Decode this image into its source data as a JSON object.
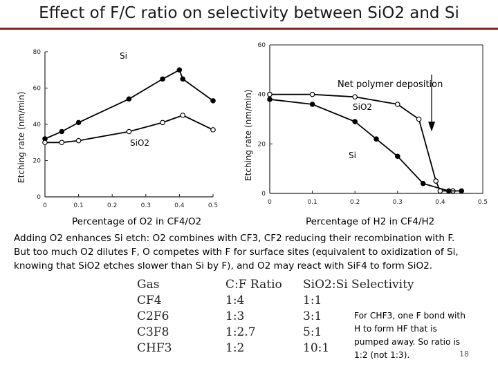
{
  "slide": {
    "title": "Effect of F/C ratio on selectivity between SiO2 and Si",
    "page_number": "18"
  },
  "left_chart": {
    "ylabel": "Etching rate (nm/min)",
    "series_label_si": "Si",
    "series_label_sio2": "SiO2",
    "xcaption": "Percentage of O2 in CF4/O2"
  },
  "right_chart": {
    "ylabel": "Etching rate (nm/min)",
    "annotation": "Net polymer deposition",
    "series_label_sio2": "SiO2",
    "series_label_si": "Si",
    "xcaption": "Percentage of H2 in CF4/H2"
  },
  "chart_data": [
    {
      "type": "line",
      "title": "",
      "xlabel": "Percentage of O2 in CF4/O2",
      "ylabel": "Etching rate (nm/min)",
      "xlim": [
        0,
        0.5
      ],
      "ylim": [
        0,
        80
      ],
      "x_ticks": [
        "0",
        "0.1",
        "0.2",
        "0.3",
        "0.4",
        "0.5"
      ],
      "y_ticks": [
        "0",
        "20",
        "40",
        "60",
        "80"
      ],
      "series": [
        {
          "name": "Si",
          "marker": "filled",
          "x": [
            0,
            0.05,
            0.1,
            0.25,
            0.35,
            0.4,
            0.41,
            0.5
          ],
          "y": [
            32,
            36,
            41,
            54,
            65,
            70,
            65,
            53
          ]
        },
        {
          "name": "SiO2",
          "marker": "open",
          "x": [
            0,
            0.05,
            0.1,
            0.25,
            0.35,
            0.41,
            0.5
          ],
          "y": [
            30,
            30,
            31,
            36,
            41,
            45,
            37
          ]
        }
      ]
    },
    {
      "type": "line",
      "title": "",
      "xlabel": "Percentage of H2 in CF4/H2",
      "ylabel": "Etching rate (nm/min)",
      "xlim": [
        0,
        0.5
      ],
      "ylim": [
        0,
        60
      ],
      "x_ticks": [
        "0",
        "0.1",
        "0.2",
        "0.3",
        "0.4",
        "0.5"
      ],
      "y_ticks": [
        "0",
        "20",
        "40",
        "60"
      ],
      "series": [
        {
          "name": "SiO2",
          "marker": "open",
          "x": [
            0,
            0.1,
            0.2,
            0.3,
            0.35,
            0.39,
            0.4,
            0.43
          ],
          "y": [
            40,
            40,
            39,
            36,
            30,
            5,
            1,
            1
          ]
        },
        {
          "name": "Si",
          "marker": "filled",
          "x": [
            0,
            0.1,
            0.2,
            0.25,
            0.3,
            0.36,
            0.42,
            0.45
          ],
          "y": [
            38,
            36,
            29,
            22,
            15,
            4,
            1,
            1
          ]
        }
      ]
    }
  ],
  "paragraph": {
    "line1": "Adding O2 enhances Si etch: O2 combines with CF3, CF2 reducing their recombination with F.",
    "line2": "But too much O2 dilutes F, O competes with F for surface sites (equivalent to oxidization of Si,",
    "line3": "knowing that SiO2 etches slower than Si by F), and O2 may react with SiF4 to form SiO2."
  },
  "table": {
    "headers": [
      "Gas",
      "C:F Ratio",
      "SiO2:Si Selectivity"
    ],
    "rows": [
      [
        "CF4",
        "1:4",
        "1:1"
      ],
      [
        "C2F6",
        "1:3",
        "3:1"
      ],
      [
        "C3F8",
        "1:2.7",
        "5:1"
      ],
      [
        "CHF3",
        "1:2",
        "10:1"
      ]
    ]
  },
  "note": {
    "line1": "For CHF3, one F bond with",
    "line2": "H to form HF that is",
    "line3": "pumped away. So ratio is",
    "line4": "1:2 (not 1:3)."
  },
  "colors": {
    "rule": "#8a1c1c",
    "text": "#000000"
  }
}
